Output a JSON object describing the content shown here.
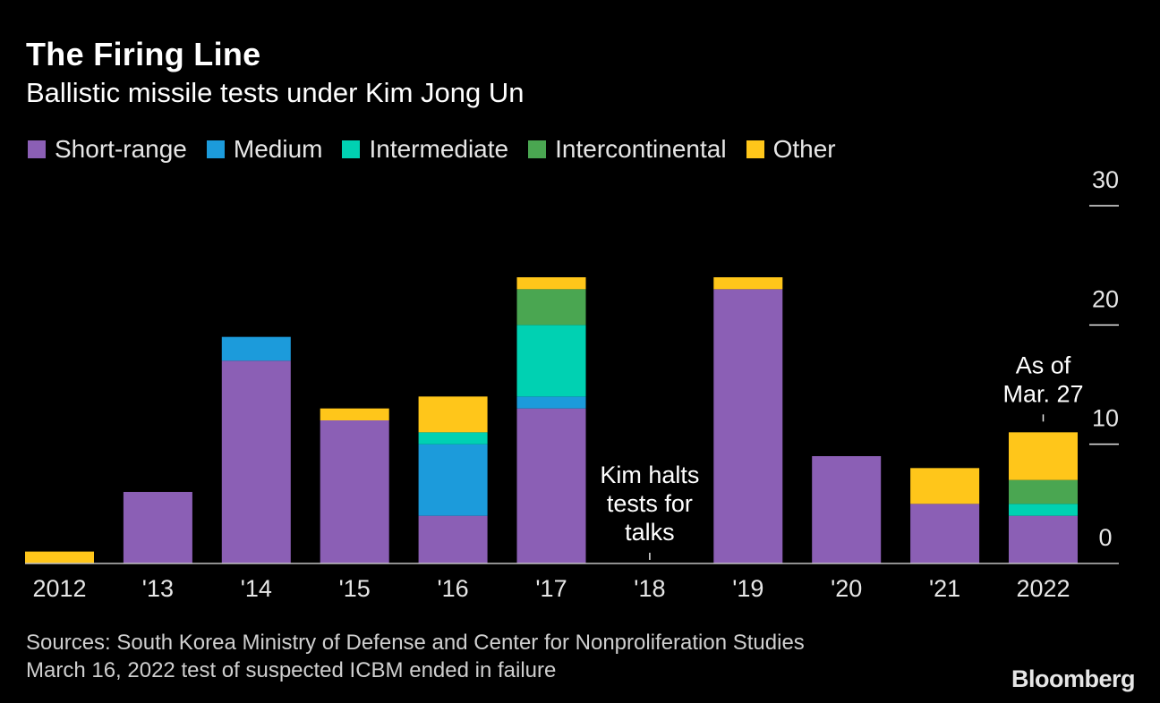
{
  "title": "The Firing Line",
  "subtitle": "Ballistic missile tests under Kim Jong Un",
  "sources_line1": "Sources: South Korea Ministry of Defense and Center for Nonproliferation Studies",
  "sources_line2": "March 16, 2022 test of suspected ICBM ended in failure",
  "brand": "Bloomberg",
  "legend": [
    {
      "name": "Short-range",
      "color": "#8b5fb5"
    },
    {
      "name": "Medium",
      "color": "#1c9bdb"
    },
    {
      "name": "Intermediate",
      "color": "#00d1b2"
    },
    {
      "name": "Intercontinental",
      "color": "#4aa651"
    },
    {
      "name": "Other",
      "color": "#ffc61a"
    }
  ],
  "chart_data": {
    "type": "bar",
    "stacked": true,
    "categories": [
      "2012",
      "'13",
      "'14",
      "'15",
      "'16",
      "'17",
      "'18",
      "'19",
      "'20",
      "'21",
      "2022"
    ],
    "series": [
      {
        "name": "Short-range",
        "color": "#8b5fb5",
        "values": [
          0,
          6,
          17,
          12,
          4,
          13,
          0,
          23,
          9,
          5,
          4
        ]
      },
      {
        "name": "Medium",
        "color": "#1c9bdb",
        "values": [
          0,
          0,
          2,
          0,
          6,
          1,
          0,
          0,
          0,
          0,
          0
        ]
      },
      {
        "name": "Intermediate",
        "color": "#00d1b2",
        "values": [
          0,
          0,
          0,
          0,
          1,
          6,
          0,
          0,
          0,
          0,
          1
        ]
      },
      {
        "name": "Intercontinental",
        "color": "#4aa651",
        "values": [
          0,
          0,
          0,
          0,
          0,
          3,
          0,
          0,
          0,
          0,
          2
        ]
      },
      {
        "name": "Other",
        "color": "#ffc61a",
        "values": [
          1,
          0,
          0,
          1,
          3,
          1,
          0,
          1,
          0,
          3,
          4
        ]
      }
    ],
    "ylim": [
      0,
      30
    ],
    "yticks": [
      0,
      10,
      20,
      30
    ],
    "y_axis_side": "right",
    "annotations": [
      {
        "category": "'18",
        "text": [
          "Kim halts",
          "tests for",
          "talks"
        ]
      },
      {
        "category": "2022",
        "text": [
          "As of",
          "Mar. 27"
        ]
      }
    ]
  }
}
